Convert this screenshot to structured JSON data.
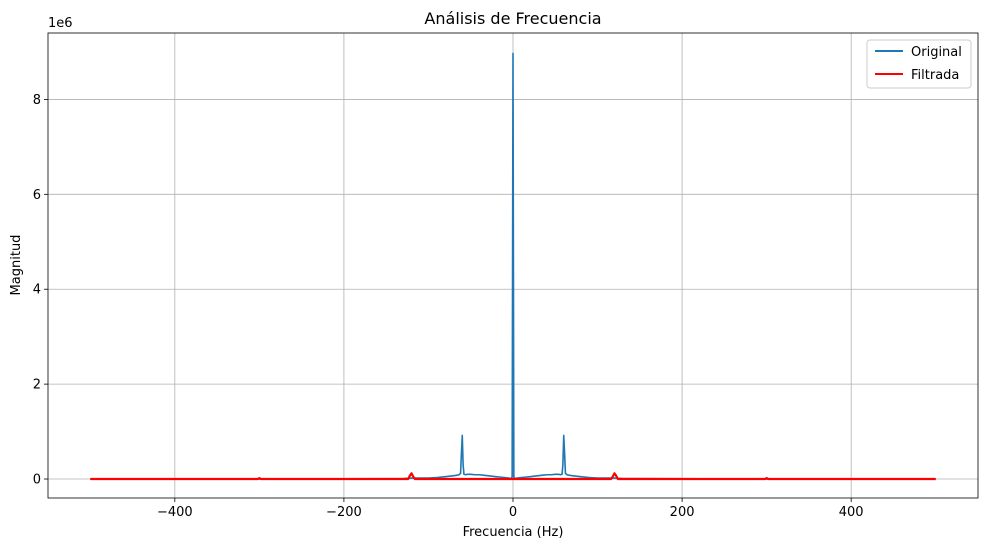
{
  "chart_data": {
    "type": "line",
    "title": "Análisis de Frecuencia",
    "xlabel": "Frecuencia (Hz)",
    "ylabel": "Magnitud",
    "y_offset_label": "1e6",
    "xlim": [
      -550,
      550
    ],
    "ylim": [
      -0.4,
      9.4
    ],
    "x_ticks": [
      -400,
      -200,
      0,
      200,
      400
    ],
    "x_tick_labels": [
      "−400",
      "−200",
      "0",
      "200",
      "400"
    ],
    "y_ticks": [
      0,
      2,
      4,
      6,
      8
    ],
    "y_tick_labels": [
      "0",
      "2",
      "4",
      "6",
      "8"
    ],
    "y_scale_note": "values in units of 1e6",
    "grid": true,
    "legend": "top-right",
    "series": [
      {
        "name": "Original",
        "color": "#1f77b4",
        "x": [
          -500,
          -300,
          -130,
          -120,
          -100,
          -90,
          -80,
          -75,
          -70,
          -66,
          -64,
          -62,
          -61,
          -60,
          -59,
          -58,
          -56,
          -54,
          -50,
          -45,
          -40,
          -35,
          -30,
          -25,
          -20,
          -15,
          -10,
          -5,
          -2,
          -1,
          0,
          1,
          2,
          5,
          10,
          15,
          20,
          25,
          30,
          35,
          40,
          45,
          50,
          54,
          56,
          58,
          59,
          60,
          61,
          62,
          64,
          66,
          70,
          75,
          80,
          90,
          100,
          120,
          130,
          300,
          500
        ],
        "y": [
          0,
          0,
          0.01,
          0.02,
          0.02,
          0.03,
          0.05,
          0.06,
          0.07,
          0.08,
          0.09,
          0.12,
          0.55,
          0.92,
          0.3,
          0.1,
          0.09,
          0.1,
          0.1,
          0.09,
          0.09,
          0.08,
          0.07,
          0.06,
          0.05,
          0.04,
          0.03,
          0.02,
          0.01,
          0.05,
          8.97,
          0.05,
          0.01,
          0.02,
          0.03,
          0.04,
          0.05,
          0.06,
          0.07,
          0.08,
          0.09,
          0.09,
          0.1,
          0.1,
          0.09,
          0.1,
          0.3,
          0.92,
          0.55,
          0.12,
          0.09,
          0.08,
          0.07,
          0.06,
          0.05,
          0.03,
          0.02,
          0.02,
          0.01,
          0,
          0
        ]
      },
      {
        "name": "Filtrada",
        "color": "#ff0000",
        "x": [
          -500,
          -302,
          -300,
          -298,
          -124,
          -122,
          -120,
          -118,
          -116,
          116,
          118,
          120,
          122,
          124,
          298,
          300,
          302,
          500
        ],
        "y": [
          0,
          0,
          0.02,
          0,
          0,
          0.07,
          0.12,
          0.05,
          0,
          0,
          0.05,
          0.12,
          0.07,
          0,
          0,
          0.02,
          0,
          0
        ]
      }
    ]
  }
}
